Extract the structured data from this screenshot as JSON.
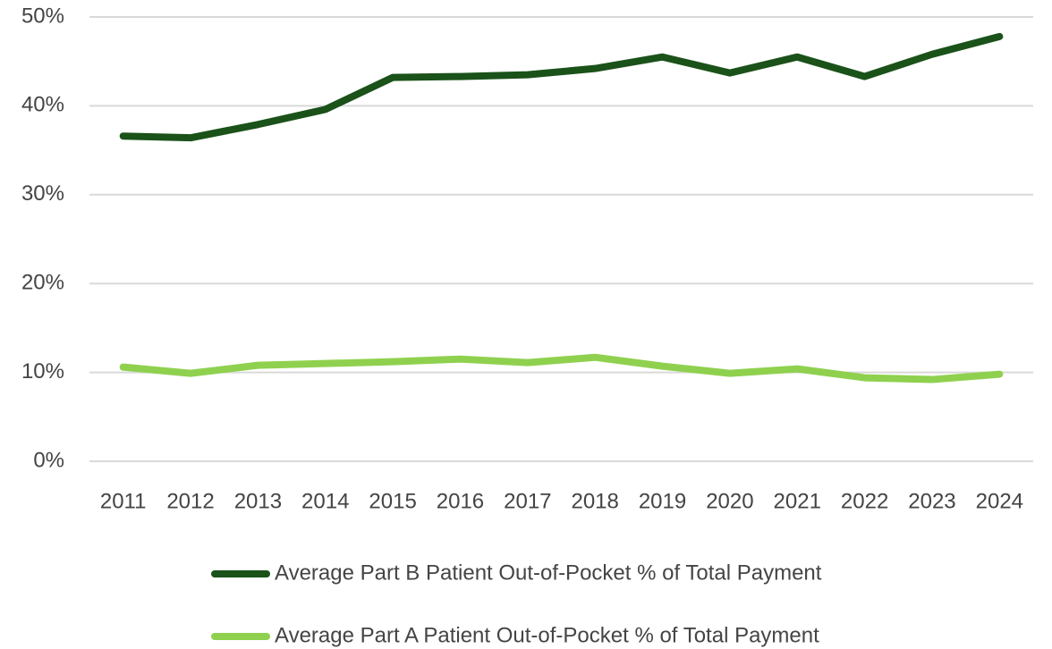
{
  "chart_data": {
    "type": "line",
    "categories": [
      "2011",
      "2012",
      "2013",
      "2014",
      "2015",
      "2016",
      "2017",
      "2018",
      "2019",
      "2020",
      "2021",
      "2022",
      "2023",
      "2024"
    ],
    "series": [
      {
        "name": "Average Part B Patient Out-of-Pocket % of Total Payment",
        "color": "#1a5219",
        "values": [
          36.6,
          36.4,
          37.9,
          39.6,
          43.2,
          43.3,
          43.5,
          44.2,
          45.5,
          43.7,
          45.5,
          43.3,
          45.8,
          47.8
        ]
      },
      {
        "name": "Average Part A Patient Out-of-Pocket % of Total Payment",
        "color": "#8fd14f",
        "values": [
          10.6,
          9.9,
          10.8,
          11.0,
          11.2,
          11.5,
          11.1,
          11.7,
          10.7,
          9.9,
          10.4,
          9.4,
          9.2,
          9.8
        ]
      }
    ],
    "ylim": [
      0,
      50
    ],
    "yticks": [
      {
        "value": 0,
        "label": "0%"
      },
      {
        "value": 10,
        "label": "10%"
      },
      {
        "value": 20,
        "label": "20%"
      },
      {
        "value": 30,
        "label": "30%"
      },
      {
        "value": 40,
        "label": "40%"
      },
      {
        "value": 50,
        "label": "50%"
      }
    ],
    "grid": true,
    "legend": "bottom"
  }
}
